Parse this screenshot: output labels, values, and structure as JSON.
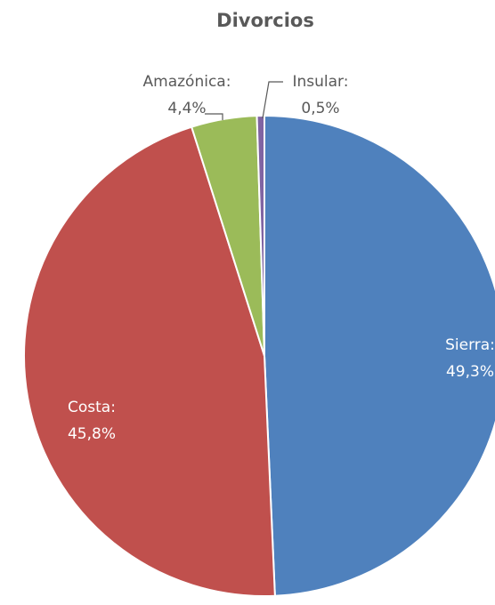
{
  "chart_data": {
    "type": "pie",
    "title": "Divorcios",
    "categories": [
      "Sierra:",
      "Costa:",
      "Amazónica:",
      "Insular:"
    ],
    "values": [
      49.3,
      45.8,
      4.4,
      0.5
    ],
    "value_labels": [
      "49,3%",
      "45,8%",
      "4,4%",
      "0,5%"
    ],
    "colors": [
      "#4f81bd",
      "#c0504d",
      "#9bbb59",
      "#8064a2"
    ]
  }
}
